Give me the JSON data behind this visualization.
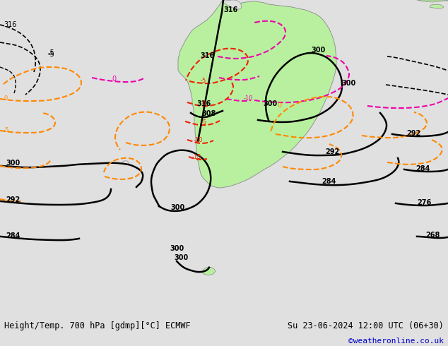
{
  "title_left": "Height/Temp. 700 hPa [gdmp][°C] ECMWF",
  "title_right": "Su 23-06-2024 12:00 UTC (06+30)",
  "credit": "©weatheronline.co.uk",
  "bg_color": "#e0e0e0",
  "land_color": "#b8f0a0",
  "ocean_color": "#e0e0e0",
  "border_color": "#888888",
  "fig_width": 6.34,
  "fig_height": 4.9,
  "dpi": 100,
  "bottom_bar_color": "#ffffff",
  "title_fontsize": 8.5,
  "credit_color": "#0000cc",
  "credit_fontsize": 8,
  "map_bg": "#dcdcdc",
  "contour_black": "#000000",
  "contour_magenta": "#ee00aa",
  "contour_red": "#ee2200",
  "contour_orange": "#ff8800"
}
